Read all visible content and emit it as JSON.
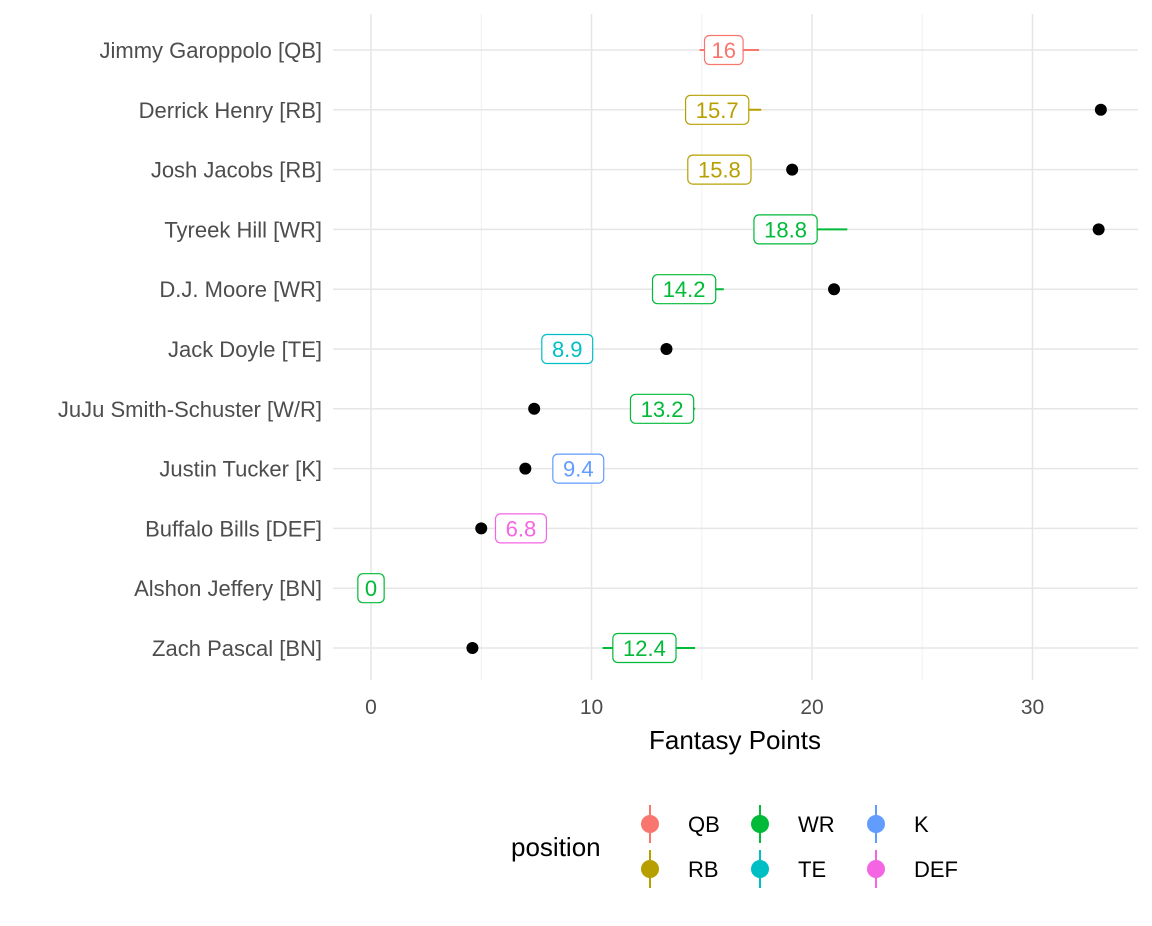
{
  "chart_data": {
    "type": "scatter",
    "title": "",
    "xlabel": "Fantasy Points",
    "ylabel": "",
    "xlim": [
      -1.7,
      35
    ],
    "x_ticks": [
      0,
      10,
      20,
      30
    ],
    "grid": true,
    "legend": {
      "title": "position",
      "placement": "bottom",
      "entries": [
        {
          "name": "QB",
          "color": "#F8766D"
        },
        {
          "name": "RB",
          "color": "#B79F00"
        },
        {
          "name": "WR",
          "color": "#00BA38"
        },
        {
          "name": "TE",
          "color": "#00BFC4"
        },
        {
          "name": "K",
          "color": "#619CFF"
        },
        {
          "name": "DEF",
          "color": "#F564E3"
        }
      ]
    },
    "players": [
      {
        "label": "Jimmy Garoppolo [QB]",
        "position": "QB",
        "projection": 16,
        "projection_label": "16",
        "range": [
          14.9,
          17.6
        ],
        "actual": null
      },
      {
        "label": "Derrick Henry [RB]",
        "position": "RB",
        "projection": 15.7,
        "projection_label": "15.7",
        "range": [
          14.3,
          17.7
        ],
        "actual": 33.1
      },
      {
        "label": "Josh Jacobs [RB]",
        "position": "RB",
        "projection": 15.8,
        "projection_label": "15.8",
        "range": [
          15.0,
          16.6
        ],
        "actual": 19.1
      },
      {
        "label": "Tyreek Hill [WR]",
        "position": "WR",
        "projection": 18.8,
        "projection_label": "18.8",
        "range": [
          17.5,
          21.6
        ],
        "actual": 33.0
      },
      {
        "label": "D.J. Moore [WR]",
        "position": "WR",
        "projection": 14.2,
        "projection_label": "14.2",
        "range": [
          13.2,
          16.0
        ],
        "actual": 21.0
      },
      {
        "label": "Jack Doyle [TE]",
        "position": "TE",
        "projection": 8.9,
        "projection_label": "8.9",
        "range": [
          8.4,
          9.4
        ],
        "actual": 13.4
      },
      {
        "label": "JuJu Smith-Schuster [W/R]",
        "position": "WR",
        "projection": 13.2,
        "projection_label": "13.2",
        "range": [
          12.4,
          14.7
        ],
        "actual": 7.4
      },
      {
        "label": "Justin Tucker [K]",
        "position": "K",
        "projection": 9.4,
        "projection_label": "9.4",
        "range": [
          8.9,
          9.9
        ],
        "actual": 7.0
      },
      {
        "label": "Buffalo Bills [DEF]",
        "position": "DEF",
        "projection": 6.8,
        "projection_label": "6.8",
        "range": [
          6.3,
          7.3
        ],
        "actual": 5.0
      },
      {
        "label": "Alshon Jeffery [BN]",
        "position": "WR",
        "projection": 0,
        "projection_label": "0",
        "range": [
          0,
          0
        ],
        "actual": null
      },
      {
        "label": "Zach Pascal [BN]",
        "position": "WR",
        "projection": 12.4,
        "projection_label": "12.4",
        "range": [
          10.5,
          14.7
        ],
        "actual": 4.6
      }
    ]
  }
}
